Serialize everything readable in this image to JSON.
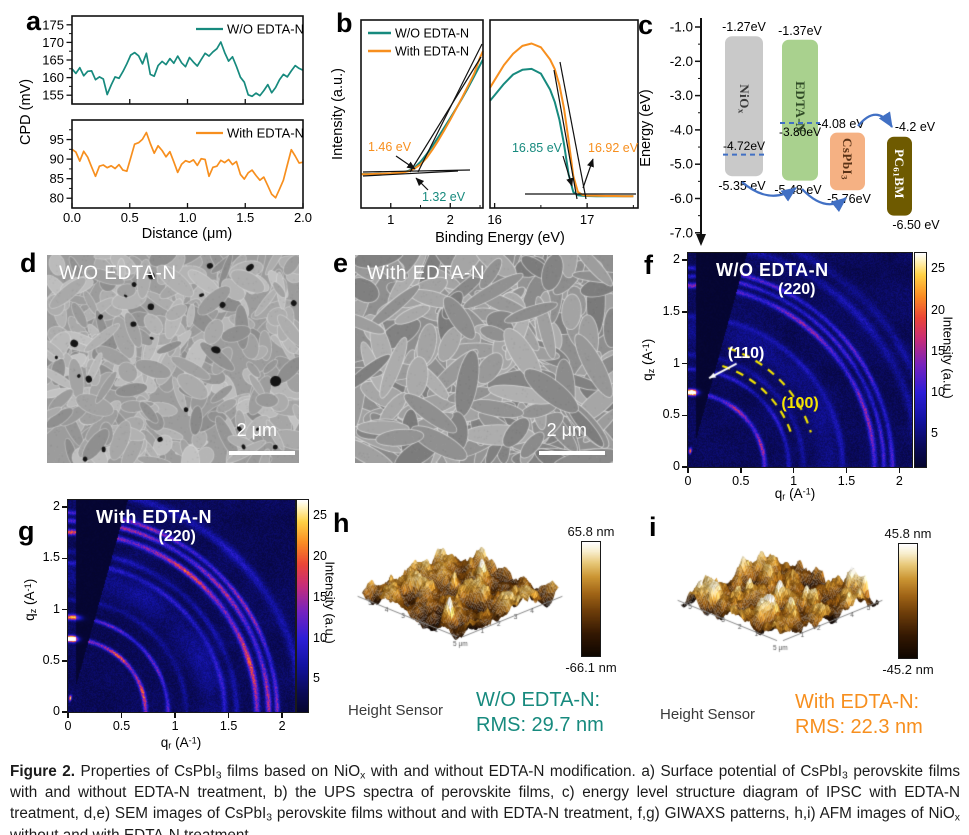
{
  "figure": {
    "panels": {
      "a": "a",
      "b": "b",
      "c": "c",
      "d": "d",
      "e": "e",
      "f": "f",
      "g": "g",
      "h": "h",
      "i": "i"
    },
    "caption": [
      {
        "t": "Figure 2.",
        "b": true
      },
      {
        "t": " Properties of CsPbI"
      },
      {
        "t": "3",
        "sub": true
      },
      {
        "t": " films based on NiO"
      },
      {
        "t": "x",
        "sub": true
      },
      {
        "t": " with and without EDTA-N modification. a) Surface potential of CsPbI"
      },
      {
        "t": "3",
        "sub": true
      },
      {
        "t": " perovskite films with and without EDTA-N treatment, b) the UPS spectra of perovskite films, c) energy level structure diagram of IPSC with EDTA-N treatment, d,e) SEM images of CsPbI"
      },
      {
        "t": "3",
        "sub": true
      },
      {
        "t": " perovskite films without and with EDTA-N treatment, f,g) GIWAXS patterns, h,i) AFM images of NiO"
      },
      {
        "t": "x",
        "sub": true
      },
      {
        "t": " without and with EDTA-N treatment."
      }
    ]
  },
  "colors": {
    "teal": "#178a7e",
    "orange": "#f78f1e",
    "blue": "#4170c4",
    "giwaxs_yellow": "#f2e400"
  },
  "sem": {
    "d": {
      "title": "W/O EDTA-N",
      "scalebar": "2 μm"
    },
    "e": {
      "title": "With EDTA-N",
      "scalebar": "2 μm"
    }
  },
  "chart_data": {
    "a": {
      "type": "line",
      "xlabel": "Distance (μm)",
      "ylabel": "CPD (mV)",
      "x_range": [
        0,
        2
      ],
      "x_ticks": [
        0,
        0.5,
        1,
        1.5,
        2
      ],
      "x_tick_labels": [
        "0.0",
        "0.5",
        "1.0",
        "1.5",
        "2.0"
      ],
      "top": {
        "legend": "W/O EDTA-N",
        "color_key": "teal",
        "y_ticks": [
          155,
          160,
          165,
          170,
          175
        ],
        "ylim": [
          152.5,
          177.5
        ],
        "y": [
          162.5,
          161.2,
          162.8,
          160.5,
          161.8,
          161.9,
          159.4,
          160.2,
          159.6,
          155.2,
          157.9,
          160.2,
          159.8,
          161.7,
          163.9,
          166.4,
          167.1,
          166.2,
          163.9,
          166.9,
          160.9,
          160.4,
          163.4,
          164.6,
          163.7,
          165.4,
          164.1,
          166.1,
          164.2,
          163.1,
          165.7,
          164.4,
          163.3,
          165.1,
          166.9,
          166.1,
          167.3,
          168.2,
          170.1,
          167.1,
          164.7,
          165.9,
          163.2,
          160.1,
          158.7,
          155.1,
          154.7,
          155.6,
          154.9,
          156.3,
          158.0,
          155.7,
          157.2,
          159.4,
          160.9,
          160.2,
          161.9,
          163.4,
          162.6,
          162.1
        ]
      },
      "bottom": {
        "legend": "With EDTA-N",
        "color_key": "orange",
        "y_ticks": [
          80,
          85,
          90,
          95
        ],
        "ylim": [
          77.5,
          100
        ],
        "y": [
          92.5,
          91.8,
          89.5,
          92.0,
          90.5,
          88.0,
          85.6,
          88.2,
          88.5,
          87.8,
          88.3,
          87.6,
          88.6,
          87.2,
          86.9,
          90.3,
          93.8,
          94.2,
          95.1,
          96.8,
          94.0,
          91.5,
          93.4,
          92.2,
          90.6,
          91.9,
          89.3,
          86.6,
          88.7,
          89.6,
          89.2,
          89.8,
          88.4,
          90.1,
          89.9,
          85.6,
          87.9,
          88.2,
          89.7,
          89.1,
          89.9,
          88.6,
          89.4,
          86.1,
          84.9,
          86.5,
          87.2,
          85.8,
          84.6,
          85.4,
          83.2,
          81.0,
          80.1,
          82.3,
          84.6,
          88.5,
          92.4,
          90.8,
          89.0,
          89.2
        ]
      }
    },
    "b": {
      "type": "line",
      "xlabel": "Binding Energy (eV)",
      "ylabel": "Intensity (a.u.)",
      "legend": [
        "W/O EDTA-N",
        "With EDTA-N"
      ],
      "left": {
        "xlim": [
          0.5,
          2.55
        ],
        "x_ticks": [
          1,
          2
        ],
        "x_tick_labels": [
          "1",
          "2"
        ],
        "x": [
          0.5,
          0.6,
          0.7,
          0.8,
          0.9,
          1.0,
          1.1,
          1.2,
          1.3,
          1.4,
          1.5,
          1.6,
          1.7,
          1.8,
          1.9,
          2.0,
          2.1,
          2.2,
          2.3,
          2.4,
          2.5,
          2.55
        ],
        "teal": [
          0.18,
          0.181,
          0.181,
          0.182,
          0.183,
          0.184,
          0.186,
          0.19,
          0.198,
          0.215,
          0.245,
          0.285,
          0.33,
          0.378,
          0.428,
          0.478,
          0.53,
          0.584,
          0.64,
          0.7,
          0.76,
          0.79
        ],
        "orange": [
          0.18,
          0.18,
          0.181,
          0.182,
          0.183,
          0.184,
          0.186,
          0.189,
          0.195,
          0.21,
          0.232,
          0.266,
          0.31,
          0.36,
          0.414,
          0.47,
          0.528,
          0.588,
          0.65,
          0.714,
          0.8,
          0.835
        ],
        "annotations": [
          {
            "text": "1.46 eV",
            "color_key": "orange"
          },
          {
            "text": "1.32 eV",
            "color_key": "teal"
          }
        ]
      },
      "right": {
        "xlim": [
          15.95,
          17.55
        ],
        "x_ticks": [
          16,
          17
        ],
        "x_tick_labels": [
          "16",
          "17"
        ],
        "x": [
          15.95,
          16.0,
          16.1,
          16.2,
          16.3,
          16.4,
          16.5,
          16.6,
          16.65,
          16.7,
          16.75,
          16.8,
          16.85,
          16.9,
          16.95,
          17.0,
          17.1,
          17.2,
          17.3,
          17.4,
          17.5
        ],
        "teal": [
          0.57,
          0.6,
          0.66,
          0.71,
          0.735,
          0.74,
          0.715,
          0.63,
          0.565,
          0.47,
          0.34,
          0.18,
          0.085,
          0.068,
          0.065,
          0.064,
          0.063,
          0.063,
          0.062,
          0.062,
          0.062
        ],
        "orange": [
          0.64,
          0.68,
          0.76,
          0.82,
          0.862,
          0.875,
          0.855,
          0.79,
          0.74,
          0.655,
          0.53,
          0.36,
          0.17,
          0.085,
          0.07,
          0.066,
          0.065,
          0.064,
          0.064,
          0.063,
          0.063
        ],
        "annotations": [
          {
            "text": "16.85 eV",
            "color_key": "teal"
          },
          {
            "text": "16.92 eV",
            "color_key": "orange"
          }
        ]
      }
    },
    "c": {
      "type": "energy-diagram",
      "ylabel": "Energy (eV)",
      "y_ticks": [
        "-1.0",
        "-2.0",
        "-3.0",
        "-4.0",
        "-5.0",
        "-6.0",
        "-7.0"
      ],
      "materials": [
        {
          "name": [
            {
              "t": "NiO"
            },
            {
              "t": "x",
              "sub": true
            }
          ],
          "fill": "#c9c9c9",
          "text_color": "#3b3b3b",
          "top": -1.27,
          "bottom": -5.35,
          "top_label": "-1.27eV",
          "bottom_label": "-5.35 eV",
          "dash": -4.72,
          "dash_label": "-4.72eV"
        },
        {
          "name": [
            {
              "t": "EDTA-N"
            }
          ],
          "fill": "#a9d18e",
          "text_color": "#2f4a26",
          "top": -1.37,
          "bottom": -5.48,
          "top_label": "-1.37eV",
          "bottom_label": "-5.48 eV",
          "dash": -3.8,
          "dash_label": "-3.80eV"
        },
        {
          "name": [
            {
              "t": "CsPbI"
            },
            {
              "t": "3",
              "sub": true
            }
          ],
          "fill": "#f5b183",
          "text_color": "#5a3216",
          "top": -4.08,
          "bottom": -5.76,
          "top_label": "-4.08 eV",
          "bottom_label": "-5.76eV"
        },
        {
          "name": [
            {
              "t": "PC"
            },
            {
              "t": "61",
              "sub": true
            },
            {
              "t": "BM"
            }
          ],
          "fill": "#6e5a00",
          "text_color": "#ffffff",
          "top": -4.2,
          "bottom": -6.5,
          "top_label": "-4.2 eV",
          "bottom_label": "-6.50 eV"
        }
      ]
    },
    "f": {
      "type": "giwaxs",
      "seed": 11,
      "title": "W/O EDTA-N",
      "xlabel_rich": [
        {
          "t": "q"
        },
        {
          "t": "r",
          "sub": true
        },
        {
          "t": " (A"
        },
        {
          "t": "-1",
          "sup": true
        },
        {
          "t": ")"
        }
      ],
      "ylabel_rich": [
        {
          "t": "q"
        },
        {
          "t": "z",
          "sub": true
        },
        {
          "t": " (A"
        },
        {
          "t": "-1",
          "sup": true
        },
        {
          "t": ")"
        }
      ],
      "x_ticks": [
        0,
        0.5,
        1,
        1.5,
        2
      ],
      "x_tick_labels": [
        "0",
        "0.5",
        "1",
        "1.5",
        "2"
      ],
      "y_ticks": [
        0,
        0.5,
        1,
        1.5,
        2
      ],
      "y_tick_labels": [
        "0",
        "0.5",
        "1",
        "1.5",
        "2"
      ],
      "cbar_ticks": [
        5,
        10,
        15,
        20,
        25
      ],
      "cbar_label": "Intensity (a.u.)",
      "peaks": [
        {
          "text": "(220)",
          "color": "#ffffff",
          "q": [
            1.03,
            1.7
          ]
        },
        {
          "text": "(110)",
          "color": "#ffffff",
          "q": [
            0.55,
            1.08
          ]
        },
        {
          "text": "(100)",
          "color": "#f5e400",
          "q": [
            1.06,
            0.6
          ]
        }
      ],
      "arrow": {
        "from": [
          0.46,
          1.0
        ],
        "to": [
          0.2,
          0.86
        ]
      },
      "dashed_arcs": [
        1.03,
        1.21
      ],
      "rings": [
        {
          "q": 0.72,
          "a": 12,
          "w": 0.016
        },
        {
          "q": 0.95,
          "a": 6,
          "w": 0.015
        },
        {
          "q": 1.09,
          "a": 3.2,
          "w": 0.02
        },
        {
          "q": 1.33,
          "a": 2.2,
          "w": 0.09
        },
        {
          "q": 1.46,
          "a": 4,
          "w": 0.02
        },
        {
          "q": 1.76,
          "a": 11,
          "w": 0.018
        },
        {
          "q": 1.85,
          "a": 7.5,
          "w": 0.015
        },
        {
          "q": 1.93,
          "a": 8.5,
          "w": 0.016
        },
        {
          "q": 2.18,
          "a": 4,
          "w": 0.03
        },
        {
          "q": 2.32,
          "a": 3,
          "w": 0.03
        }
      ],
      "spots": [
        {
          "q": 0.73,
          "deg": 87.5,
          "a": 26
        },
        {
          "q": 0.16,
          "deg": 84,
          "a": 20
        }
      ]
    },
    "g": {
      "type": "giwaxs",
      "seed": 29,
      "title": "With EDTA-N",
      "xlabel_rich": [
        {
          "t": "q"
        },
        {
          "t": "r",
          "sub": true
        },
        {
          "t": " (A"
        },
        {
          "t": "-1",
          "sup": true
        },
        {
          "t": ")"
        }
      ],
      "ylabel_rich": [
        {
          "t": "q"
        },
        {
          "t": "z",
          "sub": true
        },
        {
          "t": " (A"
        },
        {
          "t": "-1",
          "sup": true
        },
        {
          "t": ")"
        }
      ],
      "x_ticks": [
        0,
        0.5,
        1,
        1.5,
        2
      ],
      "x_tick_labels": [
        "0",
        "0.5",
        "1",
        "1.5",
        "2"
      ],
      "y_ticks": [
        0,
        0.5,
        1,
        1.5,
        2
      ],
      "y_tick_labels": [
        "0",
        "0.5",
        "1",
        "1.5",
        "2"
      ],
      "cbar_ticks": [
        5,
        10,
        15,
        20,
        25
      ],
      "cbar_label": "Intensity (a.u.)",
      "peaks": [
        {
          "text": "(220)",
          "color": "#ffffff",
          "q": [
            1.02,
            1.7
          ]
        }
      ],
      "rings": [
        {
          "q": 0.72,
          "a": 16,
          "w": 0.015
        },
        {
          "q": 0.93,
          "a": 10,
          "w": 0.014
        },
        {
          "q": 1.1,
          "a": 3,
          "w": 0.02
        },
        {
          "q": 1.33,
          "a": 2.5,
          "w": 0.09
        },
        {
          "q": 1.46,
          "a": 6,
          "w": 0.018
        },
        {
          "q": 1.57,
          "a": 4,
          "w": 0.02
        },
        {
          "q": 1.76,
          "a": 15,
          "w": 0.02
        },
        {
          "q": 1.87,
          "a": 12,
          "w": 0.018
        },
        {
          "q": 1.95,
          "a": 11,
          "w": 0.016
        },
        {
          "q": 2.18,
          "a": 5,
          "w": 0.03
        }
      ],
      "spots": [
        {
          "q": 0.72,
          "deg": 87.5,
          "a": 28
        },
        {
          "q": 0.14,
          "deg": 83,
          "a": 22
        },
        {
          "q": 0.93,
          "deg": 87,
          "a": 14
        }
      ]
    },
    "h": {
      "type": "afm-3d",
      "seed": 7,
      "zmax": "65.8 nm",
      "zmin": "-66.1 nm",
      "sensor": "Height Sensor",
      "scale_note": "5 μm",
      "rms": [
        "W/O EDTA-N:",
        "RMS:  29.7 nm"
      ]
    },
    "i": {
      "type": "afm-3d",
      "seed": 23,
      "zmax": "45.8 nm",
      "zmin": "-45.2 nm",
      "sensor": "Height Sensor",
      "scale_note": "5 μm",
      "rms": [
        "With EDTA-N:",
        "RMS: 22.3 nm"
      ]
    }
  }
}
